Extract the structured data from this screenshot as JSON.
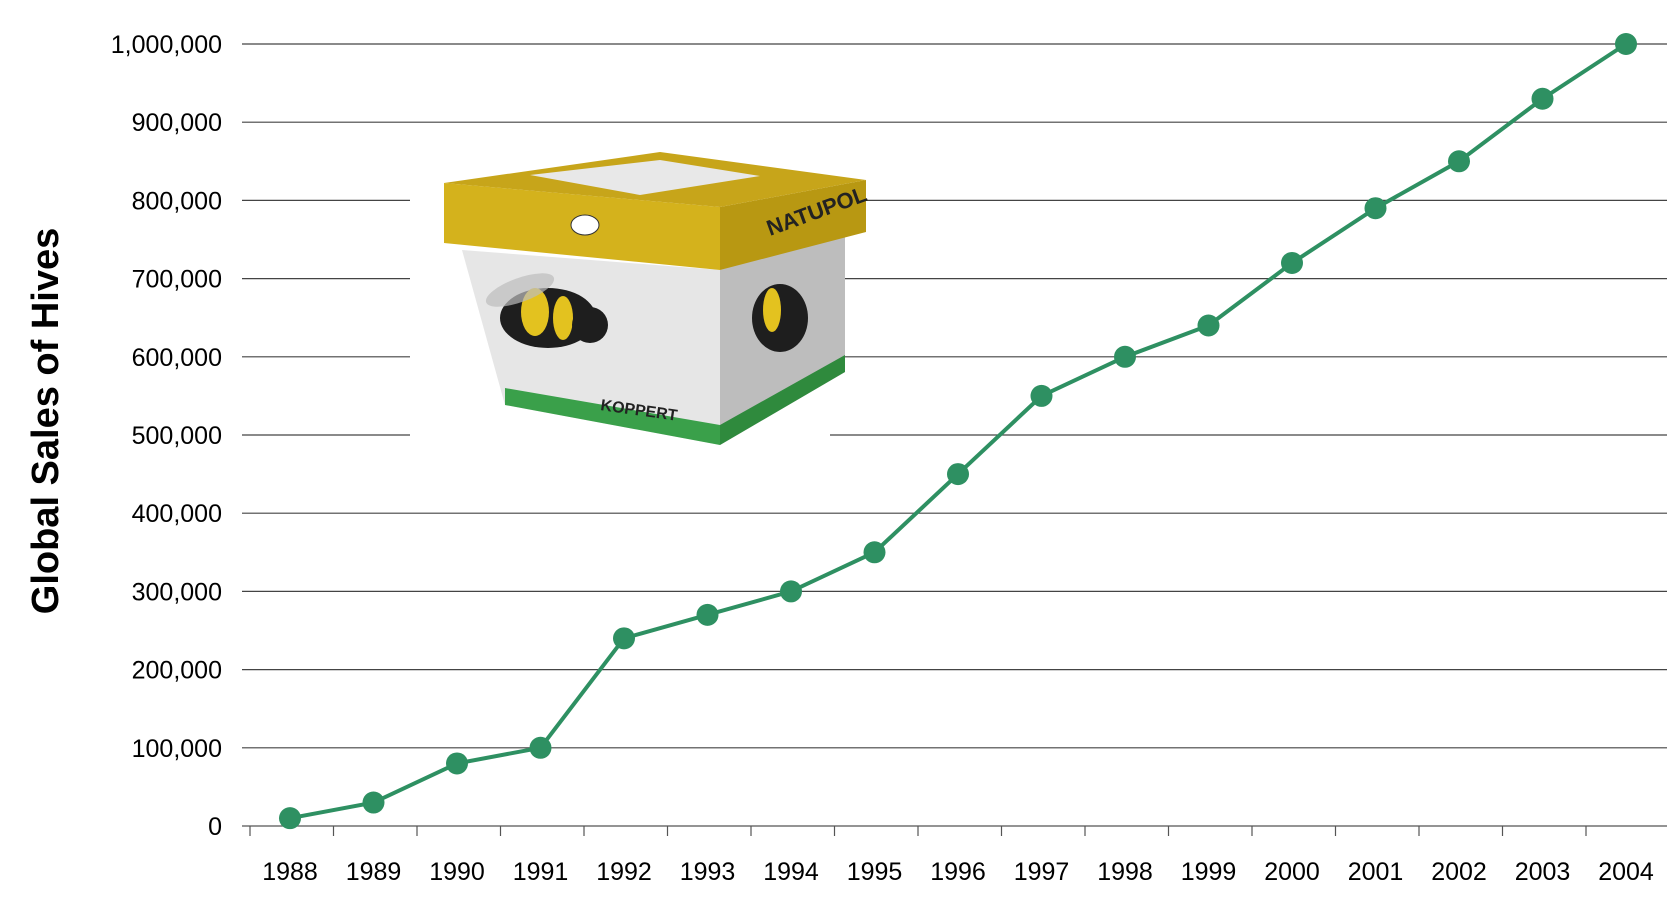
{
  "chart_data": {
    "type": "line",
    "title": "",
    "xlabel": "",
    "ylabel": "Global Sales of Hives",
    "x": [
      "1988",
      "1989",
      "1990",
      "1991",
      "1992",
      "1993",
      "1994",
      "1995",
      "1996",
      "1997",
      "1998",
      "1999",
      "2000",
      "2001",
      "2002",
      "2003",
      "2004"
    ],
    "series": [
      {
        "values": [
          10000,
          30000,
          80000,
          100000,
          240000,
          270000,
          300000,
          350000,
          450000,
          550000,
          600000,
          640000,
          720000,
          790000,
          850000,
          930000,
          1000000
        ],
        "color": "#2e9062"
      }
    ],
    "ylim": [
      0,
      1000000
    ],
    "yticks": [
      0,
      100000,
      200000,
      300000,
      400000,
      500000,
      600000,
      700000,
      800000,
      900000,
      1000000
    ],
    "ytick_labels": [
      "0",
      "100,000",
      "200,000",
      "300,000",
      "400,000",
      "500,000",
      "600,000",
      "700,000",
      "800,000",
      "900,000",
      "1,000,000"
    ],
    "grid": true,
    "legend": "none",
    "inset_image": {
      "description_icon": "bumblebee-hive-box-icon",
      "lid_text": "NATUPOL",
      "brand_text": "KOPPERT",
      "box_color": "#e9e9e9",
      "lid_color": "#d4b21c",
      "stripe_color": "#3aa04a"
    }
  }
}
